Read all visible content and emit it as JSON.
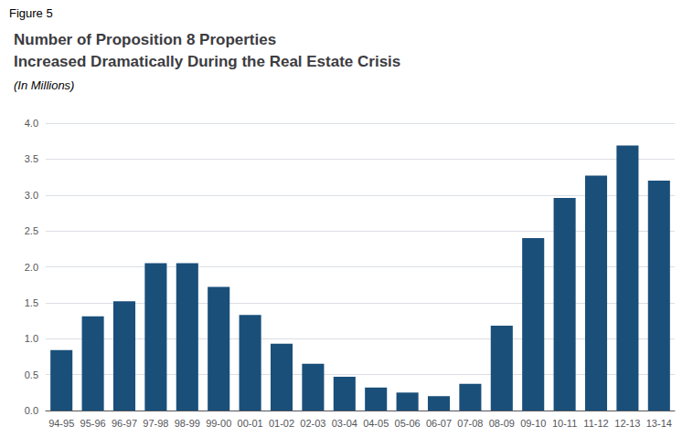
{
  "chart_data": {
    "type": "bar",
    "title": "Number of Proposition 8 Properties\nIncreased Dramatically During the Real Estate Crisis",
    "subtitle": "(In Millions)",
    "annotations": [
      "Figure 5"
    ],
    "categories": [
      "94-95",
      "95-96",
      "96-97",
      "97-98",
      "98-99",
      "99-00",
      "00-01",
      "01-02",
      "02-03",
      "03-04",
      "04-05",
      "05-06",
      "06-07",
      "07-08",
      "08-09",
      "09-10",
      "10-11",
      "11-12",
      "12-13",
      "13-14"
    ],
    "values": [
      0.84,
      1.31,
      1.52,
      2.05,
      2.05,
      1.72,
      1.33,
      0.93,
      0.65,
      0.47,
      0.32,
      0.25,
      0.2,
      0.37,
      1.18,
      2.4,
      2.96,
      3.27,
      3.69,
      3.2
    ],
    "color": "#1a4f7a",
    "ylim": [
      0,
      4.0
    ],
    "yticks": [
      {
        "value": 0.0,
        "label": "0.0"
      },
      0.5,
      {
        "value": 1.0,
        "label": "1.0"
      },
      1.5,
      {
        "value": 2.0,
        "label": "2.0"
      },
      2.5,
      {
        "value": 3.0,
        "label": "3.0"
      },
      3.5,
      {
        "value": 4.0,
        "label": "4.0"
      }
    ],
    "grid": true
  }
}
